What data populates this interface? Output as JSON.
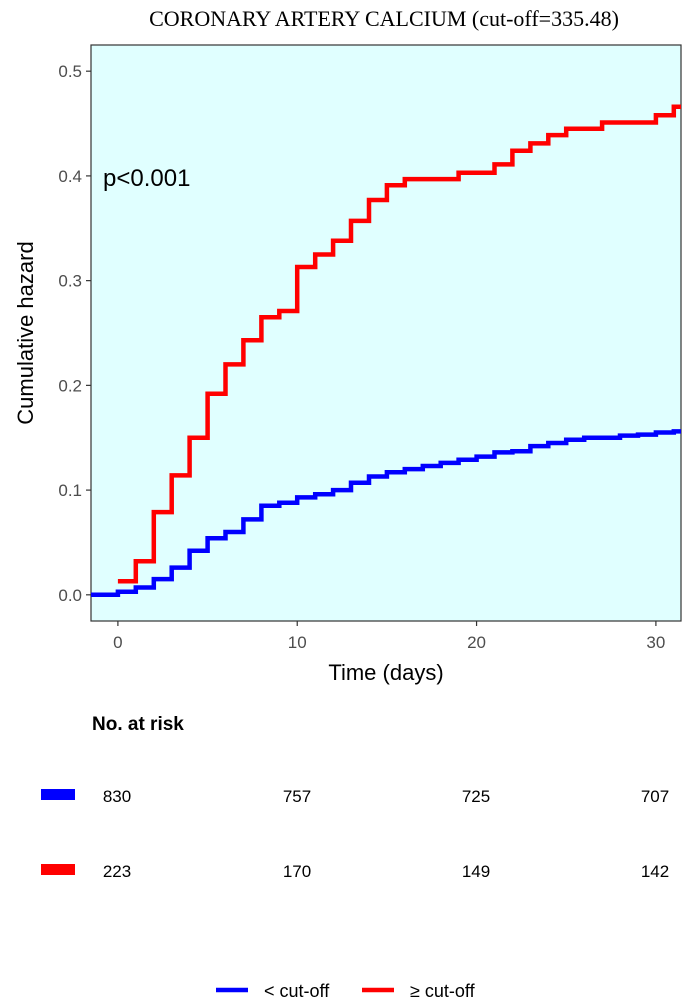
{
  "chart_data": {
    "type": "line",
    "subtype": "step",
    "title": "CORONARY ARTERY CALCIUM (cut-off=335.48)",
    "xlabel": "Time (days)",
    "ylabel": "Cumulative hazard",
    "xlim": [
      -1.5,
      31.4
    ],
    "ylim": [
      -0.025,
      0.525
    ],
    "xticks": [
      0,
      10,
      20,
      30
    ],
    "yticks": [
      0.0,
      0.1,
      0.2,
      0.3,
      0.4,
      0.5
    ],
    "ytick_labels": [
      "0.0",
      "0.1",
      "0.2",
      "0.3",
      "0.4",
      "0.5"
    ],
    "annotation": "p<0.001",
    "panel_background": "#e0ffff",
    "series": [
      {
        "name": "< cut-off",
        "color": "#0000ff",
        "steps": [
          [
            -1.5,
            0.0
          ],
          [
            0,
            0.003
          ],
          [
            1,
            0.007
          ],
          [
            2,
            0.015
          ],
          [
            3,
            0.026
          ],
          [
            4,
            0.042
          ],
          [
            5,
            0.054
          ],
          [
            6,
            0.06
          ],
          [
            7,
            0.072
          ],
          [
            8,
            0.085
          ],
          [
            9,
            0.088
          ],
          [
            10,
            0.093
          ],
          [
            11,
            0.096
          ],
          [
            12,
            0.1
          ],
          [
            13,
            0.107
          ],
          [
            14,
            0.113
          ],
          [
            15,
            0.117
          ],
          [
            16,
            0.12
          ],
          [
            17,
            0.123
          ],
          [
            18,
            0.126
          ],
          [
            19,
            0.129
          ],
          [
            20,
            0.132
          ],
          [
            21,
            0.136
          ],
          [
            22,
            0.137
          ],
          [
            23,
            0.142
          ],
          [
            24,
            0.145
          ],
          [
            25,
            0.148
          ],
          [
            26,
            0.15
          ],
          [
            28,
            0.152
          ],
          [
            29,
            0.153
          ],
          [
            30,
            0.155
          ],
          [
            31,
            0.156
          ],
          [
            31.4,
            0.156
          ]
        ]
      },
      {
        "name": "≥ cut-off",
        "color": "#ff0000",
        "steps": [
          [
            0,
            0.013
          ],
          [
            1,
            0.032
          ],
          [
            2,
            0.079
          ],
          [
            3,
            0.114
          ],
          [
            4,
            0.15
          ],
          [
            5,
            0.192
          ],
          [
            6,
            0.22
          ],
          [
            7,
            0.243
          ],
          [
            8,
            0.265
          ],
          [
            9,
            0.271
          ],
          [
            10,
            0.313
          ],
          [
            11,
            0.325
          ],
          [
            12,
            0.338
          ],
          [
            13,
            0.357
          ],
          [
            14,
            0.377
          ],
          [
            15,
            0.391
          ],
          [
            16,
            0.397
          ],
          [
            19,
            0.403
          ],
          [
            21,
            0.411
          ],
          [
            22,
            0.424
          ],
          [
            23,
            0.431
          ],
          [
            24,
            0.439
          ],
          [
            25,
            0.445
          ],
          [
            27,
            0.451
          ],
          [
            30,
            0.458
          ],
          [
            31,
            0.466
          ],
          [
            31.4,
            0.466
          ]
        ]
      }
    ],
    "risk_table": {
      "title": "No. at risk",
      "times": [
        0,
        10,
        20,
        30
      ],
      "rows": [
        {
          "name": "< cut-off",
          "color": "#0000ff",
          "values": [
            "830",
            "757",
            "725",
            "707"
          ]
        },
        {
          "name": "≥ cut-off",
          "color": "#ff0000",
          "values": [
            "223",
            "170",
            "149",
            "142"
          ]
        }
      ]
    },
    "legend": {
      "position": "bottom",
      "entries": [
        {
          "label": "< cut-off",
          "color": "#0000ff"
        },
        {
          "label": "≥ cut-off",
          "color": "#ff0000"
        }
      ]
    }
  }
}
